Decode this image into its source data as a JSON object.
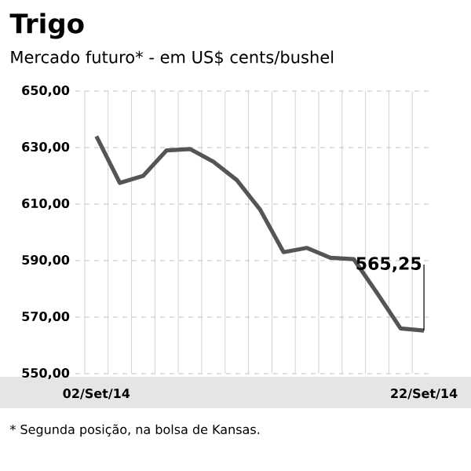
{
  "chart_data": {
    "type": "line",
    "title": "Trigo",
    "subtitle": "Mercado futuro* - em US$ cents/bushel",
    "categories": [
      "02/Set/14",
      null,
      null,
      null,
      null,
      null,
      null,
      null,
      null,
      null,
      null,
      null,
      null,
      null,
      "22/Set/14"
    ],
    "values": [
      634,
      617.5,
      620,
      629,
      629.5,
      625,
      618.5,
      608,
      593,
      594.5,
      591,
      590.5,
      578.5,
      566,
      565.25
    ],
    "color": "#555555",
    "ylim": [
      550,
      650
    ],
    "yticks": [
      {
        "value": 550,
        "label": "550,00"
      },
      {
        "value": 570,
        "label": "570,00"
      },
      {
        "value": 590,
        "label": "590,00"
      },
      {
        "value": 610,
        "label": "610,00"
      },
      {
        "value": 630,
        "label": "630,00"
      },
      {
        "value": 650,
        "label": "650,00"
      }
    ],
    "grid": true,
    "annotations": [
      {
        "text": "565,25",
        "x": "22/Set/14",
        "y": 565.25
      },
      "* Segunda posição, na bolsa de Kansas."
    ]
  }
}
